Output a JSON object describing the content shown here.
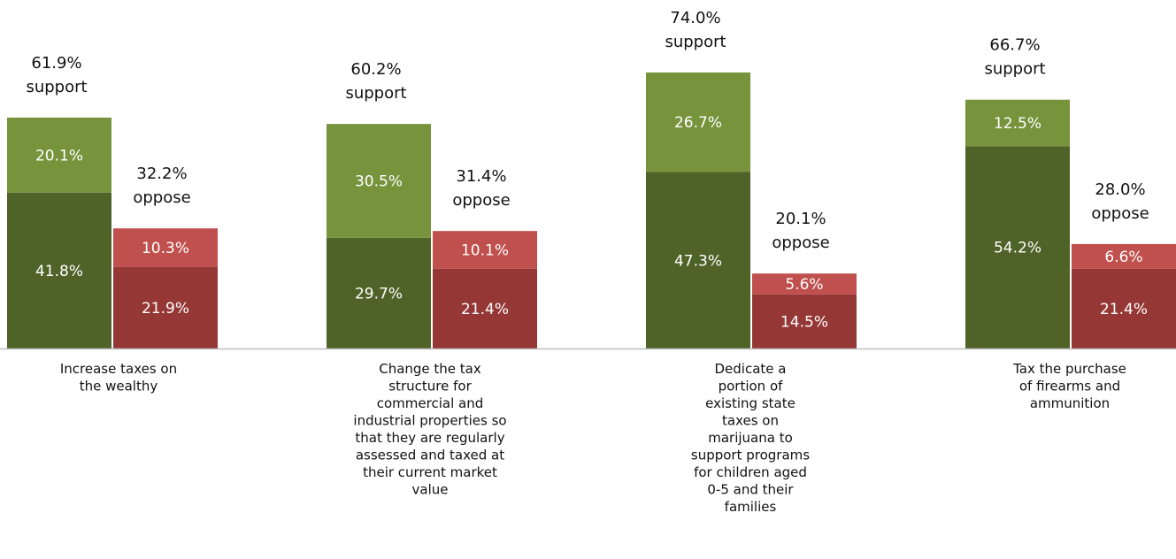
{
  "chart_data": {
    "type": "bar",
    "stacked": true,
    "grouped": true,
    "categories": [
      "Increase taxes on the wealthy",
      "Change the tax structure for commercial and industrial properties so that they are regularly assessed and taxed at their current market value",
      "Dedicate a portion of existing state taxes on marijuana to support programs for children aged 0-5 and their families",
      "Tax the purchase of firearms and ammunition"
    ],
    "category_lines": [
      [
        "Increase taxes on",
        "the wealthy"
      ],
      [
        "Change the tax",
        "structure for",
        "commercial and",
        "industrial properties so",
        "that they are regularly",
        "assessed and taxed at",
        "their current market",
        "value"
      ],
      [
        "Dedicate a",
        "portion of",
        "existing state",
        "taxes on",
        "marijuana to",
        "support programs",
        "for children aged",
        "0-5 and their",
        "families"
      ],
      [
        "Tax the purchase",
        "of firearms and",
        "ammunition"
      ]
    ],
    "groups": [
      {
        "name": "support",
        "total_labels": [
          "61.9%",
          "60.2%",
          "74.0%",
          "66.7%"
        ],
        "total_word": "support",
        "totals": [
          61.9,
          60.2,
          74.0,
          66.7
        ],
        "segments": [
          {
            "values": [
              41.8,
              29.7,
              47.3,
              54.2
            ],
            "labels": [
              "41.8%",
              "29.7%",
              "47.3%",
              "54.2%"
            ],
            "color": "#4f6228"
          },
          {
            "values": [
              20.1,
              30.5,
              26.7,
              12.5
            ],
            "labels": [
              "20.1%",
              "30.5%",
              "26.7%",
              "12.5%"
            ],
            "color": "#77933c"
          }
        ]
      },
      {
        "name": "oppose",
        "total_labels": [
          "32.2%",
          "31.4%",
          "20.1%",
          "28.0%"
        ],
        "total_word": "oppose",
        "totals": [
          32.2,
          31.4,
          20.1,
          28.0
        ],
        "segments": [
          {
            "values": [
              21.9,
              21.4,
              14.5,
              21.4
            ],
            "labels": [
              "21.9%",
              "21.4%",
              "14.5%",
              "21.4%"
            ],
            "color": "#953735"
          },
          {
            "values": [
              10.3,
              10.1,
              5.6,
              6.6
            ],
            "labels": [
              "10.3%",
              "10.1%",
              "5.6%",
              "6.6%"
            ],
            "color": "#c0504d"
          }
        ]
      }
    ],
    "ylim": [
      0,
      80
    ],
    "grid": false,
    "legend": "none",
    "axis_color": "#bfbfbf"
  }
}
